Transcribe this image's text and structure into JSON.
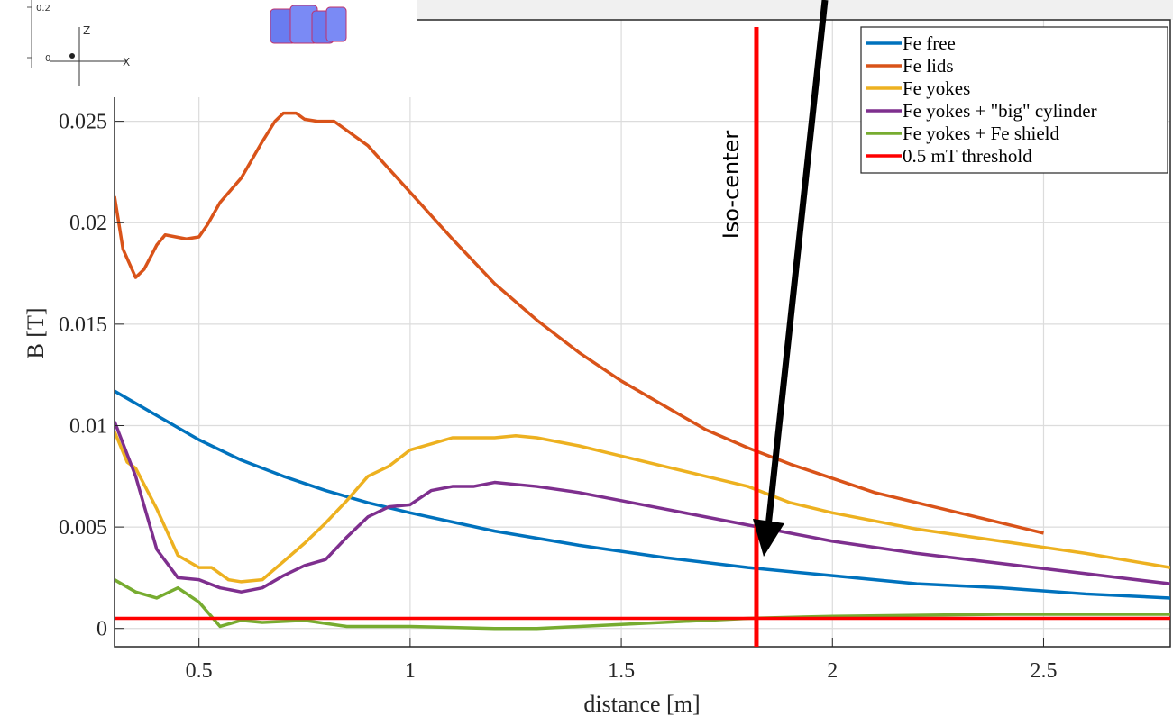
{
  "chart_data": {
    "type": "line",
    "xlabel": "distance [m]",
    "ylabel": "B [T]",
    "xlim": [
      0.3,
      2.8
    ],
    "ylim": [
      -0.0009,
      0.03
    ],
    "xticks": [
      0.5,
      1,
      1.5,
      2,
      2.5
    ],
    "yticks": [
      0,
      0.005,
      0.01,
      0.015,
      0.02,
      0.025
    ],
    "grid": true,
    "legend": "top-right",
    "series": [
      {
        "name": "Fe free",
        "color": "#0072BD",
        "x": [
          0.3,
          0.4,
          0.5,
          0.6,
          0.7,
          0.8,
          0.9,
          1.0,
          1.2,
          1.4,
          1.6,
          1.8,
          2.0,
          2.2,
          2.4,
          2.6,
          2.8
        ],
        "values": [
          0.0117,
          0.0105,
          0.0093,
          0.0083,
          0.0075,
          0.0068,
          0.0062,
          0.0057,
          0.0048,
          0.0041,
          0.0035,
          0.003,
          0.0026,
          0.0022,
          0.002,
          0.0017,
          0.0015
        ]
      },
      {
        "name": "Fe lids",
        "color": "#D95319",
        "x": [
          0.3,
          0.32,
          0.35,
          0.37,
          0.4,
          0.42,
          0.47,
          0.5,
          0.52,
          0.55,
          0.6,
          0.65,
          0.68,
          0.7,
          0.73,
          0.75,
          0.78,
          0.82,
          0.9,
          1.0,
          1.1,
          1.2,
          1.3,
          1.4,
          1.5,
          1.6,
          1.7,
          1.8,
          1.9,
          2.0,
          2.1,
          2.2,
          2.3,
          2.4,
          2.5
        ],
        "values": [
          0.0213,
          0.0187,
          0.0173,
          0.0177,
          0.0189,
          0.0194,
          0.0192,
          0.0193,
          0.0199,
          0.021,
          0.0222,
          0.024,
          0.025,
          0.0254,
          0.0254,
          0.0251,
          0.025,
          0.025,
          0.0238,
          0.0215,
          0.0192,
          0.017,
          0.0152,
          0.0136,
          0.0122,
          0.011,
          0.0098,
          0.0089,
          0.0081,
          0.0074,
          0.0067,
          0.0062,
          0.0057,
          0.0052,
          0.0047
        ]
      },
      {
        "name": "Fe yokes",
        "color": "#EDB120",
        "x": [
          0.3,
          0.33,
          0.35,
          0.4,
          0.45,
          0.5,
          0.53,
          0.57,
          0.6,
          0.65,
          0.7,
          0.75,
          0.8,
          0.85,
          0.9,
          0.95,
          1.0,
          1.05,
          1.1,
          1.15,
          1.2,
          1.25,
          1.3,
          1.4,
          1.5,
          1.6,
          1.7,
          1.8,
          1.9,
          2.0,
          2.2,
          2.4,
          2.6,
          2.8
        ],
        "values": [
          0.0097,
          0.0082,
          0.0079,
          0.0059,
          0.0036,
          0.003,
          0.003,
          0.0024,
          0.0023,
          0.0024,
          0.0033,
          0.0042,
          0.0052,
          0.0063,
          0.0075,
          0.008,
          0.0088,
          0.0091,
          0.0094,
          0.0094,
          0.0094,
          0.0095,
          0.0094,
          0.009,
          0.0085,
          0.008,
          0.0075,
          0.007,
          0.0062,
          0.0057,
          0.0049,
          0.0043,
          0.0037,
          0.003
        ]
      },
      {
        "name": "Fe yokes + \"big\" cylinder",
        "color": "#7E2F8E",
        "x": [
          0.3,
          0.35,
          0.4,
          0.45,
          0.5,
          0.55,
          0.6,
          0.65,
          0.7,
          0.75,
          0.8,
          0.85,
          0.9,
          0.95,
          1.0,
          1.05,
          1.1,
          1.15,
          1.2,
          1.25,
          1.3,
          1.4,
          1.5,
          1.6,
          1.7,
          1.8,
          1.9,
          2.0,
          2.2,
          2.4,
          2.6,
          2.8
        ],
        "values": [
          0.0102,
          0.0075,
          0.0039,
          0.0025,
          0.0024,
          0.002,
          0.0018,
          0.002,
          0.0026,
          0.0031,
          0.0034,
          0.0045,
          0.0055,
          0.006,
          0.0061,
          0.0068,
          0.007,
          0.007,
          0.0072,
          0.0071,
          0.007,
          0.0067,
          0.0063,
          0.0059,
          0.0055,
          0.0051,
          0.0047,
          0.0043,
          0.0037,
          0.0032,
          0.0027,
          0.0022
        ]
      },
      {
        "name": "Fe yokes + Fe shield",
        "color": "#77AC30",
        "x": [
          0.3,
          0.35,
          0.4,
          0.45,
          0.5,
          0.55,
          0.6,
          0.65,
          0.75,
          0.85,
          0.9,
          1.0,
          1.2,
          1.3,
          1.5,
          1.7,
          1.8,
          2.0,
          2.4,
          2.8
        ],
        "values": [
          0.0024,
          0.0018,
          0.0015,
          0.002,
          0.0013,
          0.0001,
          0.0004,
          0.0003,
          0.0004,
          0.0001,
          0.0001,
          0.0001,
          0.0,
          0.0,
          0.0002,
          0.0004,
          0.0005,
          0.0006,
          0.0007,
          0.0007
        ]
      },
      {
        "name": "0.5 mT threshold",
        "color": "#FF0000",
        "x": [
          0.3,
          2.8
        ],
        "values": [
          0.0005,
          0.0005
        ]
      }
    ],
    "annotations": [
      {
        "text": "Iso-center",
        "x": 1.82,
        "color": "#FF0000"
      }
    ]
  },
  "inset": {
    "labels": [
      "0.2",
      "0",
      "Z",
      "X"
    ]
  }
}
